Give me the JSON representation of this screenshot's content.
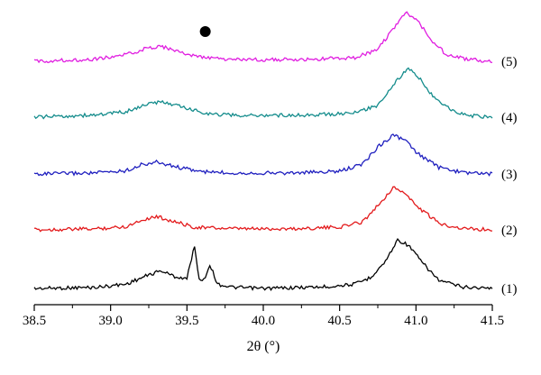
{
  "chart_data": {
    "type": "line",
    "xlabel": "2θ (°)",
    "xlim": [
      38.5,
      41.5
    ],
    "x_ticks": [
      "38.5",
      "39.0",
      "39.5",
      "40.0",
      "40.5",
      "41.0",
      "41.5"
    ],
    "y_axis_visible": false,
    "grid": false,
    "legend": "none",
    "marker": {
      "symbol": "filled-circle",
      "x": 39.62,
      "description": "marks weak peak"
    },
    "series": [
      {
        "name": "(1)",
        "color": "#000000",
        "baseline": 0,
        "points": [
          [
            38.5,
            0.0
          ],
          [
            38.9,
            0.02
          ],
          [
            39.1,
            0.08
          ],
          [
            39.25,
            0.25
          ],
          [
            39.33,
            0.33
          ],
          [
            39.42,
            0.22
          ],
          [
            39.5,
            0.18
          ],
          [
            39.55,
            0.8
          ],
          [
            39.58,
            0.15
          ],
          [
            39.62,
            0.2
          ],
          [
            39.65,
            0.45
          ],
          [
            39.7,
            0.08
          ],
          [
            39.8,
            0.02
          ],
          [
            40.0,
            0.0
          ],
          [
            40.4,
            0.03
          ],
          [
            40.6,
            0.08
          ],
          [
            40.7,
            0.2
          ],
          [
            40.8,
            0.5
          ],
          [
            40.88,
            0.9
          ],
          [
            40.95,
            0.8
          ],
          [
            41.05,
            0.45
          ],
          [
            41.15,
            0.15
          ],
          [
            41.3,
            0.03
          ],
          [
            41.5,
            0.0
          ]
        ]
      },
      {
        "name": "(2)",
        "color": "#e31a1c",
        "baseline": 1,
        "points": [
          [
            38.5,
            0.0
          ],
          [
            38.9,
            0.02
          ],
          [
            39.1,
            0.06
          ],
          [
            39.2,
            0.18
          ],
          [
            39.3,
            0.25
          ],
          [
            39.42,
            0.15
          ],
          [
            39.55,
            0.05
          ],
          [
            39.8,
            0.02
          ],
          [
            40.2,
            0.02
          ],
          [
            40.5,
            0.05
          ],
          [
            40.65,
            0.15
          ],
          [
            40.75,
            0.45
          ],
          [
            40.85,
            0.78
          ],
          [
            40.92,
            0.7
          ],
          [
            41.0,
            0.45
          ],
          [
            41.15,
            0.12
          ],
          [
            41.3,
            0.03
          ],
          [
            41.5,
            0.0
          ]
        ]
      },
      {
        "name": "(3)",
        "color": "#1f1fbf",
        "baseline": 2,
        "points": [
          [
            38.5,
            0.0
          ],
          [
            38.9,
            0.02
          ],
          [
            39.1,
            0.06
          ],
          [
            39.2,
            0.17
          ],
          [
            39.3,
            0.22
          ],
          [
            39.45,
            0.12
          ],
          [
            39.6,
            0.04
          ],
          [
            39.8,
            0.02
          ],
          [
            40.2,
            0.02
          ],
          [
            40.5,
            0.05
          ],
          [
            40.65,
            0.18
          ],
          [
            40.75,
            0.5
          ],
          [
            40.85,
            0.72
          ],
          [
            40.93,
            0.62
          ],
          [
            41.0,
            0.4
          ],
          [
            41.15,
            0.12
          ],
          [
            41.3,
            0.03
          ],
          [
            41.5,
            0.0
          ]
        ]
      },
      {
        "name": "(4)",
        "color": "#148c8c",
        "baseline": 3,
        "points": [
          [
            38.5,
            0.0
          ],
          [
            38.9,
            0.04
          ],
          [
            39.1,
            0.1
          ],
          [
            39.25,
            0.25
          ],
          [
            39.35,
            0.28
          ],
          [
            39.5,
            0.16
          ],
          [
            39.65,
            0.06
          ],
          [
            39.85,
            0.03
          ],
          [
            40.3,
            0.04
          ],
          [
            40.6,
            0.08
          ],
          [
            40.75,
            0.22
          ],
          [
            40.85,
            0.6
          ],
          [
            40.95,
            0.9
          ],
          [
            41.03,
            0.7
          ],
          [
            41.12,
            0.35
          ],
          [
            41.25,
            0.1
          ],
          [
            41.35,
            0.03
          ],
          [
            41.5,
            0.0
          ]
        ]
      },
      {
        "name": "(5)",
        "color": "#e01ee0",
        "baseline": 4,
        "points": [
          [
            38.5,
            0.0
          ],
          [
            38.9,
            0.04
          ],
          [
            39.1,
            0.12
          ],
          [
            39.25,
            0.25
          ],
          [
            39.33,
            0.28
          ],
          [
            39.45,
            0.17
          ],
          [
            39.6,
            0.07
          ],
          [
            39.8,
            0.03
          ],
          [
            40.3,
            0.03
          ],
          [
            40.6,
            0.07
          ],
          [
            40.75,
            0.22
          ],
          [
            40.85,
            0.6
          ],
          [
            40.93,
            0.9
          ],
          [
            41.0,
            0.8
          ],
          [
            41.1,
            0.4
          ],
          [
            41.2,
            0.12
          ],
          [
            41.35,
            0.03
          ],
          [
            41.5,
            0.0
          ]
        ]
      }
    ]
  }
}
